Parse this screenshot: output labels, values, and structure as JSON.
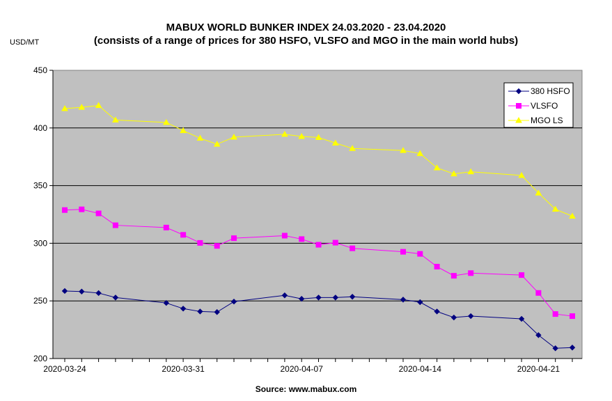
{
  "chart_data": {
    "type": "line",
    "title": "MABUX WORLD BUNKER INDEX 24.03.2020 - 23.04.2020",
    "subtitle": "(consists of a range of prices for 380 HSFO, VLSFO and MGO in the main world hubs)",
    "ylabel": "USD/MT",
    "xlabel": "",
    "source": "Source: www.mabux.com",
    "ylim": [
      200,
      450
    ],
    "yticks": [
      "200",
      "250",
      "300",
      "350",
      "400",
      "450"
    ],
    "xtick_labels": [
      "2020-03-24",
      "2020-03-31",
      "2020-04-07",
      "2020-04-14",
      "2020-04-21"
    ],
    "grid": "horizontal",
    "legend_position": "top-right",
    "plot_background": "#c0c0c0",
    "x": [
      "2020-03-24",
      "2020-03-25",
      "2020-03-26",
      "2020-03-27",
      "2020-03-30",
      "2020-03-31",
      "2020-04-01",
      "2020-04-02",
      "2020-04-03",
      "2020-04-06",
      "2020-04-07",
      "2020-04-08",
      "2020-04-09",
      "2020-04-10",
      "2020-04-13",
      "2020-04-14",
      "2020-04-15",
      "2020-04-16",
      "2020-04-17",
      "2020-04-20",
      "2020-04-21",
      "2020-04-22",
      "2020-04-23"
    ],
    "series": [
      {
        "name": "380 HSFO",
        "color": "#000080",
        "marker": "diamond",
        "values": [
          258.6,
          258.1,
          256.8,
          252.9,
          248.2,
          243.3,
          240.8,
          240.3,
          249.4,
          254.8,
          251.8,
          252.9,
          252.9,
          253.6,
          251.1,
          248.9,
          240.8,
          235.6,
          236.8,
          234.4,
          220.3,
          208.9,
          209.5
        ]
      },
      {
        "name": "VLSFO",
        "color": "#ff00ff",
        "marker": "square",
        "values": [
          328.8,
          329.4,
          325.9,
          315.6,
          313.6,
          307.3,
          300.3,
          297.7,
          304.4,
          306.6,
          303.6,
          298.7,
          300.5,
          295.6,
          292.6,
          290.8,
          279.7,
          271.8,
          274.1,
          272.4,
          256.9,
          238.6,
          236.8
        ]
      },
      {
        "name": "MGO LS",
        "color": "#ffff00",
        "marker": "triangle",
        "values": [
          416.8,
          417.9,
          419.5,
          406.9,
          404.8,
          397.7,
          391.1,
          385.9,
          392.0,
          394.5,
          392.6,
          391.7,
          386.9,
          382.2,
          380.5,
          377.8,
          365.4,
          360.2,
          362.0,
          358.8,
          343.6,
          329.5,
          323.5
        ]
      }
    ]
  }
}
